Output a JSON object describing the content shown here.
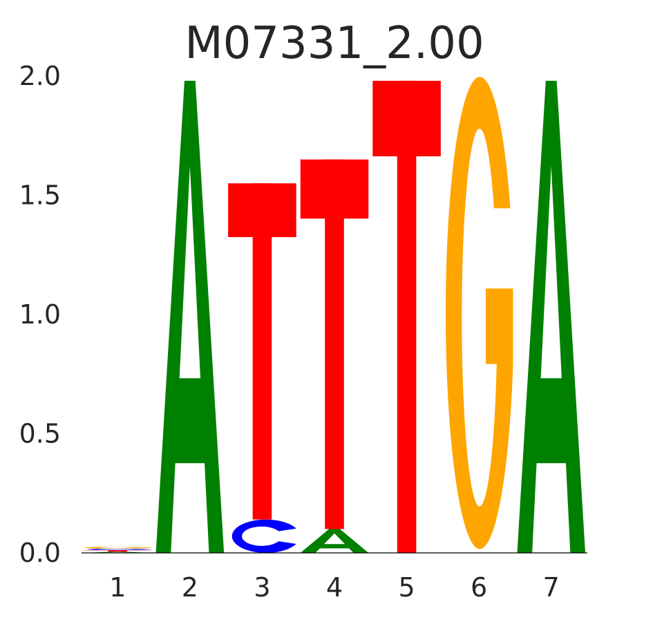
{
  "chart_data": {
    "type": "sequence_logo",
    "title": "M07331_2.00",
    "xlabel": "",
    "ylabel": "",
    "ylim": [
      0,
      2.0
    ],
    "grid": false,
    "positions": [
      "1",
      "2",
      "3",
      "4",
      "5",
      "6",
      "7"
    ],
    "y_ticks": [
      "0.0",
      "0.5",
      "1.0",
      "1.5",
      "2.0"
    ],
    "letter_colors": {
      "A": "#008000",
      "C": "#0000ff",
      "G": "#ffa500",
      "T": "#ff0000"
    },
    "stacks": [
      [
        {
          "letter": "A",
          "bits": 0.005
        },
        {
          "letter": "T",
          "bits": 0.006
        },
        {
          "letter": "C",
          "bits": 0.007
        },
        {
          "letter": "G",
          "bits": 0.008
        }
      ],
      [
        {
          "letter": "A",
          "bits": 1.98
        }
      ],
      [
        {
          "letter": "C",
          "bits": 0.14
        },
        {
          "letter": "T",
          "bits": 1.41
        }
      ],
      [
        {
          "letter": "A",
          "bits": 0.1
        },
        {
          "letter": "T",
          "bits": 1.55
        }
      ],
      [
        {
          "letter": "T",
          "bits": 1.98
        }
      ],
      [
        {
          "letter": "G",
          "bits": 1.98
        }
      ],
      [
        {
          "letter": "A",
          "bits": 1.98
        }
      ]
    ]
  }
}
